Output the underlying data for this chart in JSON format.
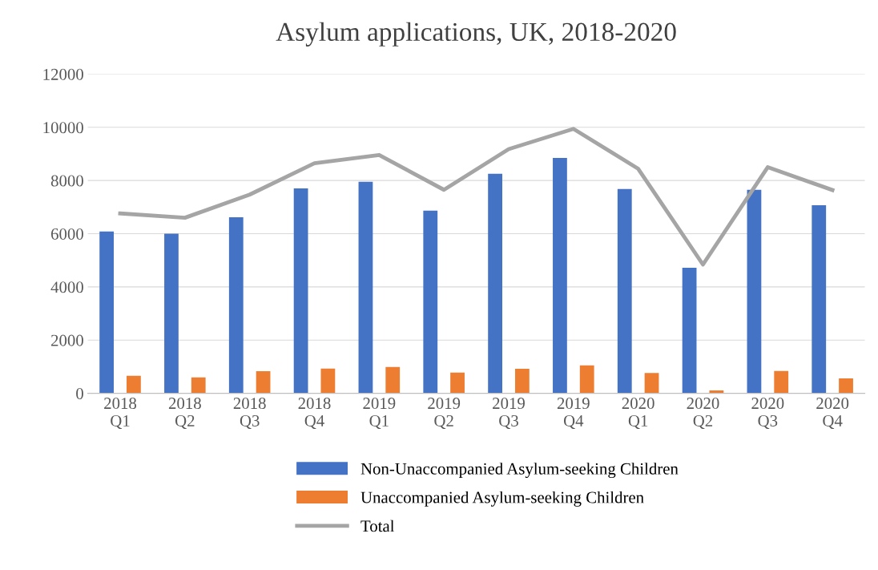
{
  "chart_data": {
    "type": "bar",
    "title": "Asylum applications, UK, 2018-2020",
    "categories": [
      "2018\nQ1",
      "2018\nQ2",
      "2018\nQ3",
      "2018\nQ4",
      "2019\nQ1",
      "2019\nQ2",
      "2019\nQ3",
      "2019\nQ4",
      "2020\nQ1",
      "2020\nQ2",
      "2020\nQ3",
      "2020\nQ4"
    ],
    "series": [
      {
        "name": "Non-Unaccompanied Asylum-seeking Children",
        "color": "#4472c4",
        "values": [
          6080,
          6000,
          6620,
          7700,
          7950,
          6870,
          8250,
          8850,
          7680,
          4720,
          7650,
          7070
        ]
      },
      {
        "name": "Unaccompanied Asylum-seeking Children",
        "color": "#ed7d31",
        "values": [
          660,
          600,
          830,
          930,
          990,
          780,
          920,
          1050,
          760,
          110,
          840,
          560
        ]
      },
      {
        "name": "Total",
        "type": "line",
        "color": "#a5a5a5",
        "values": [
          6760,
          6600,
          7470,
          8650,
          8960,
          7650,
          9180,
          9940,
          8440,
          4840,
          8500,
          7640
        ]
      }
    ],
    "ylim": [
      0,
      12000
    ],
    "yticks": [
      0,
      2000,
      4000,
      6000,
      8000,
      10000,
      12000
    ],
    "grid": "y",
    "legend": "bottom",
    "marker": "none",
    "line_style": "solid"
  }
}
